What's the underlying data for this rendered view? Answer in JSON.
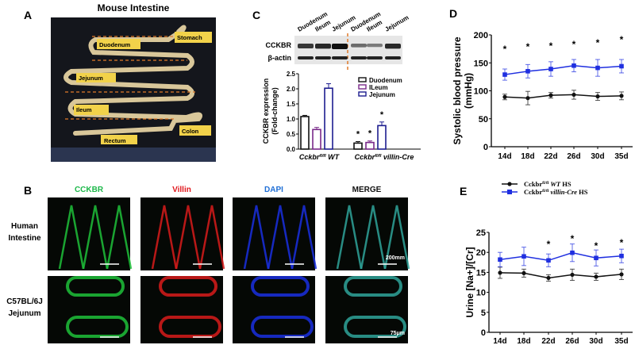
{
  "panel_labels": {
    "a": "A",
    "b": "B",
    "c": "C",
    "d": "D",
    "e": "E"
  },
  "panel_a": {
    "title": "Mouse Intestine",
    "labels": [
      "Stomach",
      "Duodenum",
      "Jejunum",
      "Ileum",
      "Colon",
      "Rectum"
    ]
  },
  "panel_b": {
    "columns": [
      "CCKBR",
      "Villin",
      "DAPI",
      "MERGE"
    ],
    "column_colors": [
      "#1db84a",
      "#e0161b",
      "#1f6fd6",
      "#111111"
    ],
    "rows": [
      "Human\nIntestine",
      "C57BL/6J\nJejunum"
    ],
    "row_lines": [
      [
        "Human",
        "Intestine"
      ],
      [
        "C57BL/6J",
        "Jejunum"
      ]
    ],
    "scale_bars": [
      "200mm",
      "75μm"
    ]
  },
  "panel_c": {
    "lanes": [
      "Duodenum",
      "Ileum",
      "Jejunum",
      "Duodenum",
      "Ileum",
      "Jejunum"
    ],
    "blot_rows": [
      "CCKBR",
      "β-actin"
    ],
    "cckbr_band_intensity": [
      0.75,
      0.85,
      1.0,
      0.4,
      0.3,
      0.85
    ]
  },
  "colors": {
    "wt": "#111111",
    "cre": "#1f2fe0",
    "duodenum": "#111111",
    "ileum": "#7a2a8a",
    "jejunum": "#1d1d8f",
    "divider": "#e07a2a"
  },
  "chart_data": [
    {
      "id": "C",
      "type": "bar",
      "ylabel": [
        "CCKBR expression",
        "(Fold-change)"
      ],
      "ylim": [
        0,
        2.5
      ],
      "yticks": [
        "0.0",
        "0.5",
        "1.0",
        "1.5",
        "2.0",
        "2.5"
      ],
      "groups": [
        {
          "label_main": "Cckbr",
          "label_sup": "fl/fl",
          "label_rest": " WT"
        },
        {
          "label_main": "Cckbr",
          "label_sup": "fl/fl",
          "label_rest": " villin-Cre"
        }
      ],
      "series": [
        {
          "name": "Duodenum",
          "values": [
            1.08,
            0.2
          ],
          "errors": [
            0.04,
            0.05
          ]
        },
        {
          "name": "ILeum",
          "values": [
            0.65,
            0.22
          ],
          "errors": [
            0.07,
            0.05
          ]
        },
        {
          "name": "Jejunum",
          "values": [
            2.02,
            0.78
          ],
          "errors": [
            0.15,
            0.12
          ]
        }
      ],
      "significance": [
        "",
        "",
        "",
        "*",
        "*",
        "*"
      ],
      "legend": "top-right"
    },
    {
      "id": "D",
      "type": "line",
      "ylabel": [
        "Systolic blood pressure",
        "(mmHg)"
      ],
      "ylim": [
        0,
        200
      ],
      "yticks": [
        "0",
        "50",
        "100",
        "150",
        "200"
      ],
      "categories": [
        "14d",
        "18d",
        "22d",
        "26d",
        "30d",
        "35d"
      ],
      "series": [
        {
          "values": [
            89,
            87,
            92,
            93,
            90,
            91
          ],
          "errors": [
            5,
            12,
            5,
            8,
            7,
            7
          ]
        },
        {
          "values": [
            129,
            135,
            139,
            145,
            141,
            144
          ],
          "errors": [
            10,
            12,
            13,
            11,
            15,
            12
          ]
        }
      ],
      "significance": [
        "*",
        "*",
        "*",
        "*",
        "*",
        "*"
      ]
    },
    {
      "id": "E",
      "type": "line",
      "ylabel": [
        "Urine [Na+]/[Cr]"
      ],
      "ylim": [
        0,
        25
      ],
      "yticks": [
        "0",
        "5",
        "10",
        "15",
        "20",
        "25"
      ],
      "categories": [
        "14d",
        "18d",
        "22d",
        "26d",
        "30d",
        "35d"
      ],
      "series": [
        {
          "name": "Cckbr fl/fl WT HS",
          "name_main": "Cckbr",
          "name_sup": "fl/fl",
          "name_italic": " WT",
          "name_tail": " HS",
          "values": [
            14.9,
            14.8,
            13.6,
            14.4,
            13.9,
            14.5
          ],
          "errors": [
            1.4,
            1.0,
            0.8,
            1.4,
            0.9,
            1.3
          ]
        },
        {
          "name": "Cckbr fl/fl villin-Cre HS",
          "name_main": "Cckbr",
          "name_sup": "fl/fl",
          "name_italic": " villin-Cre",
          "name_tail": " HS",
          "values": [
            18.2,
            19.0,
            18.0,
            19.9,
            18.6,
            19.1
          ],
          "errors": [
            1.8,
            2.3,
            1.6,
            2.2,
            2.0,
            1.7
          ]
        }
      ],
      "significance": [
        "",
        "",
        "*",
        "*",
        "*",
        "*"
      ],
      "legend": "top"
    }
  ]
}
